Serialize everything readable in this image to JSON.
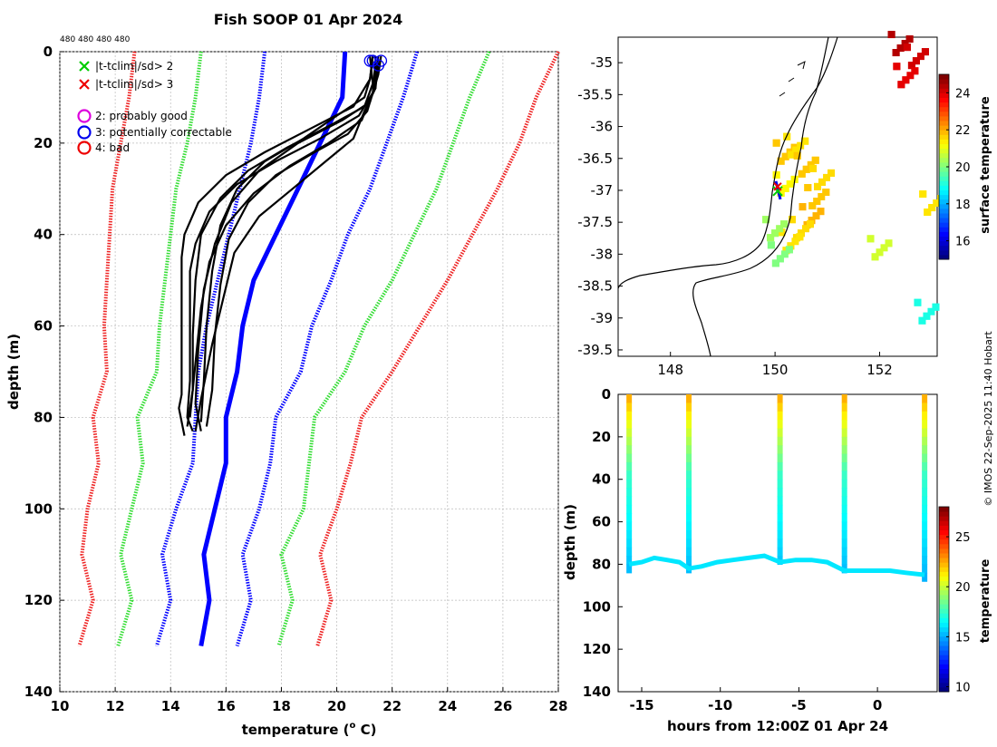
{
  "figure": {
    "title": "Fish SOOP 01 Apr 2024",
    "profile_counts": "480 480 480 480",
    "copyright": "© IMOS 22-Sep-2025 11:40 Hobart"
  },
  "chart_data": [
    {
      "type": "line",
      "name": "temperature-depth profiles",
      "xlabel": "temperature (° C)",
      "xlabel_main": "temperature (",
      "xlabel_sup": "o",
      "xlabel_tail": " C)",
      "ylabel": "depth (m)",
      "xlim": [
        10,
        28
      ],
      "ylim": [
        0,
        140
      ],
      "y_inverted": true,
      "grid": true,
      "xticks": [
        "10",
        "12",
        "14",
        "16",
        "18",
        "20",
        "22",
        "24",
        "26",
        "28"
      ],
      "yticks": [
        "0",
        "20",
        "40",
        "60",
        "80",
        "100",
        "120",
        "140"
      ],
      "legend": [
        {
          "label": "|t-tclim|/sd> 2",
          "marker": "x",
          "color": "#00cc00"
        },
        {
          "label": "|t-tclim|/sd> 3",
          "marker": "x",
          "color": "#ee0000"
        },
        {
          "label": "2: probably good",
          "marker": "o",
          "color": "#dd00dd"
        },
        {
          "label": "3: potentially correctable",
          "marker": "o",
          "color": "#0000ee"
        },
        {
          "label": "4: bad",
          "marker": "o",
          "color": "#ee0000"
        }
      ],
      "legend_location": "top-left",
      "series": [
        {
          "name": "climatology mean",
          "color": "#0000ff",
          "style": "solid",
          "points": [
            [
              20.3,
              0
            ],
            [
              20.2,
              10
            ],
            [
              19.4,
              20
            ],
            [
              18.6,
              30
            ],
            [
              17.8,
              40
            ],
            [
              17.0,
              50
            ],
            [
              16.6,
              60
            ],
            [
              16.4,
              70
            ],
            [
              16.0,
              80
            ],
            [
              16.0,
              90
            ],
            [
              15.6,
              100
            ],
            [
              15.2,
              110
            ],
            [
              15.4,
              120
            ],
            [
              15.1,
              130
            ]
          ]
        },
        {
          "name": "mean -1sd",
          "color": "#0000ff",
          "style": "dotted",
          "points": [
            [
              17.4,
              0
            ],
            [
              17.2,
              10
            ],
            [
              16.9,
              20
            ],
            [
              16.5,
              30
            ],
            [
              16.1,
              40
            ],
            [
              15.7,
              50
            ],
            [
              15.3,
              60
            ],
            [
              15.0,
              70
            ],
            [
              14.9,
              80
            ],
            [
              14.8,
              90
            ],
            [
              14.2,
              100
            ],
            [
              13.7,
              110
            ],
            [
              14.0,
              120
            ],
            [
              13.5,
              130
            ]
          ]
        },
        {
          "name": "mean +1sd",
          "color": "#0000ff",
          "style": "dotted",
          "points": [
            [
              22.9,
              0
            ],
            [
              22.4,
              10
            ],
            [
              21.8,
              20
            ],
            [
              21.2,
              30
            ],
            [
              20.4,
              40
            ],
            [
              19.8,
              50
            ],
            [
              19.1,
              60
            ],
            [
              18.7,
              70
            ],
            [
              17.8,
              80
            ],
            [
              17.6,
              90
            ],
            [
              17.2,
              100
            ],
            [
              16.6,
              110
            ],
            [
              16.9,
              120
            ],
            [
              16.4,
              130
            ]
          ]
        },
        {
          "name": "mean -2sd",
          "color": "#33dd33",
          "style": "dotted",
          "points": [
            [
              15.1,
              0
            ],
            [
              14.9,
              10
            ],
            [
              14.6,
              20
            ],
            [
              14.2,
              30
            ],
            [
              14.0,
              40
            ],
            [
              13.8,
              50
            ],
            [
              13.6,
              60
            ],
            [
              13.5,
              70
            ],
            [
              12.8,
              80
            ],
            [
              13.0,
              90
            ],
            [
              12.6,
              100
            ],
            [
              12.2,
              110
            ],
            [
              12.6,
              120
            ],
            [
              12.1,
              130
            ]
          ]
        },
        {
          "name": "mean +2sd",
          "color": "#33dd33",
          "style": "dotted",
          "points": [
            [
              25.5,
              0
            ],
            [
              24.8,
              10
            ],
            [
              24.2,
              20
            ],
            [
              23.6,
              30
            ],
            [
              22.8,
              40
            ],
            [
              22.0,
              50
            ],
            [
              21.0,
              60
            ],
            [
              20.3,
              70
            ],
            [
              19.2,
              80
            ],
            [
              19.0,
              90
            ],
            [
              18.8,
              100
            ],
            [
              18.0,
              110
            ],
            [
              18.4,
              120
            ],
            [
              17.9,
              130
            ]
          ]
        },
        {
          "name": "mean -3sd",
          "color": "#ee2222",
          "style": "dotted",
          "points": [
            [
              12.7,
              0
            ],
            [
              12.5,
              10
            ],
            [
              12.2,
              20
            ],
            [
              11.9,
              30
            ],
            [
              11.8,
              40
            ],
            [
              11.7,
              50
            ],
            [
              11.6,
              60
            ],
            [
              11.7,
              70
            ],
            [
              11.2,
              80
            ],
            [
              11.4,
              90
            ],
            [
              11.0,
              100
            ],
            [
              10.8,
              110
            ],
            [
              11.2,
              120
            ],
            [
              10.7,
              130
            ]
          ]
        },
        {
          "name": "mean +3sd",
          "color": "#ee2222",
          "style": "dotted",
          "points": [
            [
              28.0,
              0
            ],
            [
              27.2,
              10
            ],
            [
              26.6,
              20
            ],
            [
              25.8,
              30
            ],
            [
              24.9,
              40
            ],
            [
              24.0,
              50
            ],
            [
              23.0,
              60
            ],
            [
              22.0,
              70
            ],
            [
              20.9,
              80
            ],
            [
              20.5,
              90
            ],
            [
              20.0,
              100
            ],
            [
              19.4,
              110
            ],
            [
              19.8,
              120
            ],
            [
              19.3,
              130
            ]
          ]
        }
      ],
      "profiles": [
        [
          [
            21.3,
            1
          ],
          [
            21.2,
            6
          ],
          [
            20.6,
            12
          ],
          [
            19.0,
            17
          ],
          [
            17.4,
            22
          ],
          [
            16.0,
            27
          ],
          [
            15.0,
            33
          ],
          [
            14.5,
            40
          ],
          [
            14.4,
            45
          ],
          [
            14.4,
            55
          ],
          [
            14.4,
            65
          ],
          [
            14.4,
            75
          ],
          [
            14.3,
            78
          ],
          [
            14.5,
            84
          ]
        ],
        [
          [
            21.5,
            2
          ],
          [
            21.4,
            8
          ],
          [
            20.8,
            14
          ],
          [
            19.4,
            19
          ],
          [
            17.8,
            24
          ],
          [
            16.4,
            29
          ],
          [
            15.4,
            35
          ],
          [
            14.9,
            42
          ],
          [
            14.7,
            48
          ],
          [
            14.7,
            60
          ],
          [
            14.7,
            72
          ],
          [
            14.6,
            80
          ],
          [
            14.8,
            83
          ]
        ],
        [
          [
            21.2,
            1
          ],
          [
            21.3,
            7
          ],
          [
            21.0,
            12
          ],
          [
            19.8,
            16
          ],
          [
            18.2,
            21
          ],
          [
            16.8,
            26
          ],
          [
            15.8,
            32
          ],
          [
            15.1,
            40
          ],
          [
            14.9,
            50
          ],
          [
            14.8,
            62
          ],
          [
            14.8,
            74
          ],
          [
            14.6,
            82
          ]
        ],
        [
          [
            21.6,
            1
          ],
          [
            21.5,
            5
          ],
          [
            21.2,
            11
          ],
          [
            20.2,
            15
          ],
          [
            18.6,
            20
          ],
          [
            17.2,
            26
          ],
          [
            16.2,
            33
          ],
          [
            15.6,
            42
          ],
          [
            15.2,
            52
          ],
          [
            15.0,
            65
          ],
          [
            14.9,
            77
          ],
          [
            15.1,
            83
          ]
        ],
        [
          [
            21.4,
            2
          ],
          [
            21.3,
            9
          ],
          [
            20.9,
            15
          ],
          [
            19.7,
            20
          ],
          [
            18.3,
            25
          ],
          [
            17.0,
            31
          ],
          [
            16.0,
            38
          ],
          [
            15.4,
            46
          ],
          [
            15.1,
            56
          ],
          [
            14.9,
            68
          ],
          [
            14.7,
            80
          ]
        ],
        [
          [
            21.3,
            1
          ],
          [
            21.2,
            6
          ],
          [
            21.0,
            10
          ],
          [
            20.0,
            14
          ],
          [
            18.8,
            19
          ],
          [
            17.4,
            24
          ],
          [
            16.4,
            30
          ],
          [
            15.8,
            38
          ],
          [
            15.5,
            48
          ],
          [
            15.3,
            60
          ],
          [
            15.2,
            72
          ],
          [
            15.1,
            81
          ]
        ],
        [
          [
            21.5,
            1
          ],
          [
            21.4,
            7
          ],
          [
            21.1,
            13
          ],
          [
            20.4,
            18
          ],
          [
            19.2,
            22
          ],
          [
            17.8,
            27
          ],
          [
            16.8,
            33
          ],
          [
            16.1,
            41
          ],
          [
            15.8,
            51
          ],
          [
            15.6,
            62
          ],
          [
            15.5,
            74
          ],
          [
            15.3,
            82
          ]
        ],
        [
          [
            21.4,
            1
          ],
          [
            21.4,
            8
          ],
          [
            21.0,
            13
          ],
          [
            20.6,
            19
          ],
          [
            19.6,
            24
          ],
          [
            18.4,
            30
          ],
          [
            17.2,
            36
          ],
          [
            16.3,
            44
          ],
          [
            15.9,
            54
          ],
          [
            15.5,
            64
          ],
          [
            15.1,
            76
          ],
          [
            14.9,
            83
          ]
        ]
      ]
    },
    {
      "type": "heatmap",
      "name": "surface temperature map",
      "xlim": [
        147,
        153.1
      ],
      "ylim": [
        -39.6,
        -34.6
      ],
      "xticks": [
        "148",
        "150",
        "152"
      ],
      "yticks": [
        "-35",
        "-35.5",
        "-36",
        "-36.5",
        "-37",
        "-37.5",
        "-38",
        "-38.5",
        "-39",
        "-39.5"
      ],
      "colorbar_label": "surface temperature",
      "colorbar_range": [
        15,
        25
      ],
      "colorbar_ticks": [
        "16",
        "18",
        "20",
        "22",
        "24"
      ],
      "cells": [
        {
          "lon": 150.2,
          "lat": -36.4,
          "temp": 21.8
        },
        {
          "lon": 150.4,
          "lat": -36.3,
          "temp": 21.5
        },
        {
          "lon": 150.6,
          "lat": -36.6,
          "temp": 21.8
        },
        {
          "lon": 150.9,
          "lat": -36.8,
          "temp": 21.6
        },
        {
          "lon": 150.8,
          "lat": -37.1,
          "temp": 21.8
        },
        {
          "lon": 150.7,
          "lat": -37.4,
          "temp": 22.0
        },
        {
          "lon": 150.5,
          "lat": -37.6,
          "temp": 21.6
        },
        {
          "lon": 150.3,
          "lat": -37.8,
          "temp": 21.5
        },
        {
          "lon": 150.2,
          "lat": -36.9,
          "temp": 21.3
        },
        {
          "lon": 150.0,
          "lat": -37.6,
          "temp": 20.3
        },
        {
          "lon": 150.1,
          "lat": -38.0,
          "temp": 20.0
        },
        {
          "lon": 152.0,
          "lat": -37.9,
          "temp": 20.8
        },
        {
          "lon": 153.0,
          "lat": -37.2,
          "temp": 21.5
        },
        {
          "lon": 152.9,
          "lat": -38.9,
          "temp": 19.0
        },
        {
          "lon": 152.4,
          "lat": -34.7,
          "temp": 24.5
        },
        {
          "lon": 152.7,
          "lat": -34.9,
          "temp": 24.2
        },
        {
          "lon": 152.5,
          "lat": -35.2,
          "temp": 24.0
        }
      ],
      "markers": [
        {
          "lon": 150.05,
          "lat": -36.97,
          "type": "ship-track"
        }
      ]
    },
    {
      "type": "scatter",
      "name": "depth vs time",
      "xlabel": "hours from 12:00Z 01 Apr 24",
      "ylabel": "depth (m)",
      "xlim": [
        -16.5,
        3.8
      ],
      "ylim": [
        0,
        140
      ],
      "y_inverted": true,
      "xticks": [
        "-15",
        "-10",
        "-5",
        "0"
      ],
      "yticks": [
        "0",
        "20",
        "40",
        "60",
        "80",
        "100",
        "120",
        "140"
      ],
      "colorbar_label": "temperature",
      "colorbar_range": [
        9.5,
        28
      ],
      "colorbar_ticks": [
        "10",
        "15",
        "20",
        "25"
      ],
      "casts": [
        {
          "hour": -15.8,
          "max_depth": 80
        },
        {
          "hour": -12.0,
          "max_depth": 82
        },
        {
          "hour": -6.2,
          "max_depth": 79
        },
        {
          "hour": -2.1,
          "max_depth": 83
        },
        {
          "hour": 3.0,
          "max_depth": 85
        }
      ],
      "bottom_track": [
        [
          -15.8,
          80
        ],
        [
          -15.0,
          79
        ],
        [
          -14.2,
          77
        ],
        [
          -13.4,
          78
        ],
        [
          -12.6,
          79
        ],
        [
          -12.0,
          82
        ],
        [
          -11.2,
          81
        ],
        [
          -10.2,
          79
        ],
        [
          -9.2,
          78
        ],
        [
          -8.2,
          77
        ],
        [
          -7.2,
          76
        ],
        [
          -6.2,
          79
        ],
        [
          -5.2,
          78
        ],
        [
          -4.2,
          78
        ],
        [
          -3.2,
          79
        ],
        [
          -2.1,
          83
        ],
        [
          -1.2,
          83
        ],
        [
          -0.2,
          83
        ],
        [
          0.8,
          83
        ],
        [
          1.8,
          84
        ],
        [
          3.0,
          85
        ]
      ]
    }
  ]
}
